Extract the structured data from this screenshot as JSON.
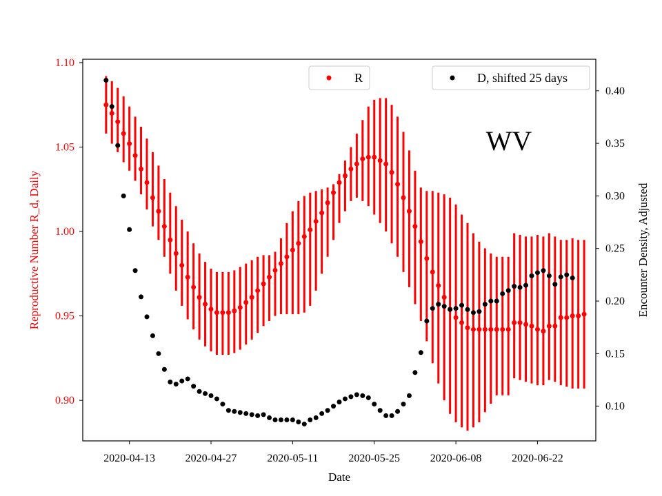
{
  "chart_data": {
    "type": "scatter",
    "annotation": "WV",
    "xlabel": "Date",
    "ylabel_left": "Reproductive Number R_d, Daily",
    "ylabel_right": "Encounter Density, Adjusted",
    "x_start_day": -4,
    "x_range_days": [
      -8,
      80
    ],
    "x_ticks": [
      {
        "day": 0,
        "label": "2020-04-13"
      },
      {
        "day": 14,
        "label": "2020-04-27"
      },
      {
        "day": 28,
        "label": "2020-05-11"
      },
      {
        "day": 42,
        "label": "2020-05-25"
      },
      {
        "day": 56,
        "label": "2020-06-08"
      },
      {
        "day": 70,
        "label": "2020-06-22"
      }
    ],
    "y_left": {
      "range": [
        0.876,
        1.102
      ],
      "ticks": [
        "0.90",
        "0.95",
        "1.00",
        "1.05",
        "1.10"
      ],
      "color": "#ff0000"
    },
    "y_right": {
      "range": [
        0.067,
        0.43
      ],
      "ticks": [
        "0.10",
        "0.15",
        "0.20",
        "0.25",
        "0.30",
        "0.35",
        "0.40"
      ],
      "color": "#000000"
    },
    "legend": {
      "r_label": "R",
      "d_label": "D, shifted 25 days"
    },
    "series": [
      {
        "name": "R",
        "axis": "left",
        "color": "#ff0000",
        "values": [
          1.075,
          1.07,
          1.065,
          1.058,
          1.052,
          1.045,
          1.037,
          1.029,
          1.02,
          1.012,
          1.003,
          0.995,
          0.987,
          0.98,
          0.973,
          0.967,
          0.961,
          0.957,
          0.954,
          0.952,
          0.952,
          0.952,
          0.953,
          0.955,
          0.958,
          0.961,
          0.965,
          0.969,
          0.973,
          0.977,
          0.981,
          0.985,
          0.989,
          0.993,
          0.997,
          1.001,
          1.006,
          1.011,
          1.017,
          1.023,
          1.029,
          1.033,
          1.037,
          1.04,
          1.043,
          1.044,
          1.044,
          1.042,
          1.04,
          1.035,
          1.028,
          1.02,
          1.012,
          1.003,
          0.994,
          0.984,
          0.976,
          0.968,
          0.961,
          0.954,
          0.949,
          0.946,
          0.943,
          0.942,
          0.942,
          0.942,
          0.942,
          0.942,
          0.942,
          0.942,
          0.946,
          0.946,
          0.945,
          0.944,
          0.942,
          0.941,
          0.944,
          0.944,
          0.949,
          0.949,
          0.95,
          0.95,
          0.951
        ],
        "lower": [
          1.058,
          1.052,
          1.047,
          1.041,
          1.036,
          1.03,
          1.022,
          1.013,
          1.003,
          0.995,
          0.985,
          0.975,
          0.965,
          0.956,
          0.948,
          0.942,
          0.936,
          0.932,
          0.929,
          0.927,
          0.927,
          0.927,
          0.928,
          0.93,
          0.933,
          0.936,
          0.94,
          0.944,
          0.947,
          0.95,
          0.951,
          0.951,
          0.951,
          0.951,
          0.952,
          0.956,
          0.965,
          0.975,
          0.985,
          0.995,
          1.005,
          1.012,
          1.018,
          1.02,
          1.018,
          1.015,
          1.01,
          1.005,
          1.0,
          0.993,
          0.985,
          0.976,
          0.967,
          0.957,
          0.947,
          0.935,
          0.922,
          0.91,
          0.9,
          0.892,
          0.887,
          0.884,
          0.882,
          0.884,
          0.887,
          0.893,
          0.898,
          0.903,
          0.903,
          0.903,
          0.913,
          0.912,
          0.911,
          0.91,
          0.909,
          0.909,
          0.912,
          0.911,
          0.909,
          0.908,
          0.907,
          0.907,
          0.907
        ],
        "upper": [
          1.092,
          1.089,
          1.085,
          1.08,
          1.074,
          1.068,
          1.062,
          1.055,
          1.047,
          1.039,
          1.031,
          1.023,
          1.015,
          1.007,
          1.0,
          0.993,
          0.987,
          0.982,
          0.978,
          0.976,
          0.976,
          0.976,
          0.977,
          0.979,
          0.981,
          0.983,
          0.985,
          0.986,
          0.986,
          0.988,
          0.996,
          1.005,
          1.012,
          1.018,
          1.021,
          1.023,
          1.024,
          1.025,
          1.026,
          1.028,
          1.034,
          1.042,
          1.05,
          1.058,
          1.066,
          1.074,
          1.078,
          1.079,
          1.079,
          1.075,
          1.068,
          1.059,
          1.048,
          1.036,
          1.026,
          1.024,
          1.024,
          1.023,
          1.022,
          1.02,
          1.016,
          1.01,
          1.005,
          0.999,
          0.994,
          0.99,
          0.987,
          0.985,
          0.985,
          0.985,
          0.999,
          0.998,
          0.997,
          0.997,
          0.998,
          0.997,
          0.999,
          0.997,
          0.995,
          0.995,
          0.996,
          0.995,
          0.995
        ]
      },
      {
        "name": "D, shifted 25 days",
        "axis": "right",
        "color": "#000000",
        "values": [
          0.41,
          0.385,
          0.348,
          0.3,
          0.268,
          0.229,
          0.204,
          0.185,
          0.167,
          0.15,
          0.135,
          0.123,
          0.121,
          0.124,
          0.126,
          0.119,
          0.114,
          0.112,
          0.11,
          0.107,
          0.102,
          0.096,
          0.095,
          0.094,
          0.093,
          0.092,
          0.091,
          0.092,
          0.089,
          0.087,
          0.087,
          0.087,
          0.087,
          0.085,
          0.083,
          0.087,
          0.089,
          0.093,
          0.096,
          0.1,
          0.104,
          0.107,
          0.109,
          0.111,
          0.11,
          0.108,
          0.102,
          0.096,
          0.091,
          0.091,
          0.095,
          0.102,
          0.11,
          0.132,
          0.151,
          0.181,
          0.193,
          0.197,
          0.195,
          0.192,
          0.193,
          0.196,
          0.192,
          0.189,
          0.19,
          0.197,
          0.2,
          0.2,
          0.207,
          0.21,
          0.214,
          0.213,
          0.215,
          0.224,
          0.227,
          0.229,
          0.224,
          0.216,
          0.223,
          0.225,
          0.222
        ]
      }
    ]
  }
}
